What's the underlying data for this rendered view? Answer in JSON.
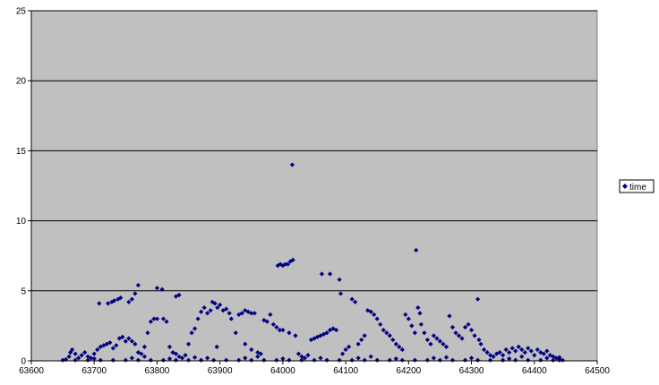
{
  "chart_data": {
    "type": "scatter",
    "title": "",
    "xlabel": "",
    "ylabel": "",
    "xlim": [
      63600,
      64500
    ],
    "ylim": [
      0,
      25
    ],
    "x_ticks": [
      63600,
      63700,
      63800,
      63900,
      64000,
      64100,
      64200,
      64300,
      64400,
      64500
    ],
    "y_ticks": [
      0,
      5,
      10,
      15,
      20,
      25
    ],
    "grid": "horizontal major gridlines",
    "legend_position": "right",
    "plot_background": "#c0c0c0",
    "marker_color": "#000080",
    "series": [
      {
        "name": "time",
        "marker": "diamond",
        "points": [
          [
            63650,
            0.05
          ],
          [
            63655,
            0.1
          ],
          [
            63660,
            0.3
          ],
          [
            63662,
            0.6
          ],
          [
            63665,
            0.8
          ],
          [
            63670,
            0.5
          ],
          [
            63675,
            0.2
          ],
          [
            63680,
            0.4
          ],
          [
            63685,
            0.6
          ],
          [
            63690,
            0.3
          ],
          [
            63695,
            0.2
          ],
          [
            63700,
            0.5
          ],
          [
            63705,
            0.8
          ],
          [
            63710,
            1.0
          ],
          [
            63715,
            1.1
          ],
          [
            63720,
            1.2
          ],
          [
            63725,
            1.3
          ],
          [
            63730,
            0.9
          ],
          [
            63735,
            1.1
          ],
          [
            63740,
            1.6
          ],
          [
            63745,
            1.7
          ],
          [
            63750,
            1.4
          ],
          [
            63755,
            1.6
          ],
          [
            63760,
            1.4
          ],
          [
            63765,
            1.2
          ],
          [
            63770,
            0.6
          ],
          [
            63775,
            0.5
          ],
          [
            63780,
            1.0
          ],
          [
            63785,
            2.0
          ],
          [
            63790,
            2.8
          ],
          [
            63795,
            3.0
          ],
          [
            63800,
            3.0
          ],
          [
            63810,
            3.0
          ],
          [
            63815,
            2.8
          ],
          [
            63820,
            1.0
          ],
          [
            63825,
            0.6
          ],
          [
            63830,
            0.5
          ],
          [
            63835,
            0.3
          ],
          [
            63840,
            0.2
          ],
          [
            63845,
            0.4
          ],
          [
            63708,
            4.1
          ],
          [
            63722,
            4.1
          ],
          [
            63728,
            4.2
          ],
          [
            63732,
            4.3
          ],
          [
            63738,
            4.4
          ],
          [
            63742,
            4.5
          ],
          [
            63755,
            4.2
          ],
          [
            63760,
            4.4
          ],
          [
            63765,
            4.8
          ],
          [
            63770,
            5.4
          ],
          [
            63800,
            5.2
          ],
          [
            63808,
            5.1
          ],
          [
            63830,
            4.6
          ],
          [
            63835,
            4.7
          ],
          [
            63850,
            1.2
          ],
          [
            63855,
            2.0
          ],
          [
            63860,
            2.3
          ],
          [
            63865,
            3.0
          ],
          [
            63870,
            3.5
          ],
          [
            63875,
            3.8
          ],
          [
            63880,
            3.4
          ],
          [
            63885,
            3.6
          ],
          [
            63888,
            4.2
          ],
          [
            63892,
            4.1
          ],
          [
            63896,
            3.8
          ],
          [
            63900,
            4.0
          ],
          [
            63905,
            3.6
          ],
          [
            63910,
            3.7
          ],
          [
            63915,
            3.4
          ],
          [
            63918,
            3.0
          ],
          [
            63925,
            2.0
          ],
          [
            63930,
            3.3
          ],
          [
            63935,
            3.4
          ],
          [
            63940,
            3.6
          ],
          [
            63945,
            3.5
          ],
          [
            63950,
            3.4
          ],
          [
            63955,
            3.4
          ],
          [
            63895,
            1.0
          ],
          [
            63940,
            1.2
          ],
          [
            63950,
            0.8
          ],
          [
            63960,
            0.6
          ],
          [
            63965,
            0.5
          ],
          [
            63970,
            2.9
          ],
          [
            63975,
            2.8
          ],
          [
            63980,
            3.3
          ],
          [
            63985,
            2.6
          ],
          [
            63990,
            2.4
          ],
          [
            63995,
            2.2
          ],
          [
            64000,
            2.2
          ],
          [
            64010,
            2.0
          ],
          [
            63992,
            6.8
          ],
          [
            63996,
            6.9
          ],
          [
            64000,
            6.8
          ],
          [
            64004,
            6.9
          ],
          [
            64008,
            6.9
          ],
          [
            64012,
            7.1
          ],
          [
            64016,
            7.2
          ],
          [
            64015,
            14.0
          ],
          [
            64020,
            1.8
          ],
          [
            64025,
            0.5
          ],
          [
            64030,
            0.3
          ],
          [
            64035,
            0.2
          ],
          [
            64040,
            0.4
          ],
          [
            64045,
            1.5
          ],
          [
            64050,
            1.6
          ],
          [
            64055,
            1.7
          ],
          [
            64060,
            1.8
          ],
          [
            64065,
            1.9
          ],
          [
            64070,
            2.0
          ],
          [
            64075,
            2.2
          ],
          [
            64080,
            2.3
          ],
          [
            64085,
            2.2
          ],
          [
            64062,
            6.2
          ],
          [
            64075,
            6.2
          ],
          [
            64090,
            5.8
          ],
          [
            64092,
            4.8
          ],
          [
            64095,
            0.5
          ],
          [
            64100,
            0.8
          ],
          [
            64105,
            1.0
          ],
          [
            64110,
            4.4
          ],
          [
            64115,
            4.2
          ],
          [
            64120,
            1.2
          ],
          [
            64125,
            1.5
          ],
          [
            64130,
            1.8
          ],
          [
            64135,
            3.6
          ],
          [
            64140,
            3.5
          ],
          [
            64145,
            3.3
          ],
          [
            64150,
            3.0
          ],
          [
            64155,
            2.6
          ],
          [
            64160,
            2.2
          ],
          [
            64165,
            2.0
          ],
          [
            64170,
            1.8
          ],
          [
            64175,
            1.5
          ],
          [
            64180,
            1.2
          ],
          [
            64185,
            1.0
          ],
          [
            64190,
            0.8
          ],
          [
            64195,
            3.3
          ],
          [
            64200,
            3.0
          ],
          [
            64205,
            2.5
          ],
          [
            64210,
            2.0
          ],
          [
            64212,
            7.9
          ],
          [
            64215,
            3.8
          ],
          [
            64218,
            3.4
          ],
          [
            64220,
            2.6
          ],
          [
            64225,
            2.0
          ],
          [
            64230,
            1.5
          ],
          [
            64235,
            1.2
          ],
          [
            64240,
            1.8
          ],
          [
            64245,
            1.6
          ],
          [
            64250,
            1.4
          ],
          [
            64255,
            1.2
          ],
          [
            64260,
            1.0
          ],
          [
            64265,
            3.2
          ],
          [
            64270,
            2.4
          ],
          [
            64275,
            2.0
          ],
          [
            64280,
            1.8
          ],
          [
            64285,
            1.6
          ],
          [
            64290,
            2.4
          ],
          [
            64295,
            2.6
          ],
          [
            64300,
            2.2
          ],
          [
            64305,
            1.8
          ],
          [
            64310,
            4.4
          ],
          [
            64312,
            1.5
          ],
          [
            64315,
            1.2
          ],
          [
            64320,
            0.8
          ],
          [
            64325,
            0.6
          ],
          [
            64330,
            0.4
          ],
          [
            64335,
            0.3
          ],
          [
            64340,
            0.5
          ],
          [
            64345,
            0.6
          ],
          [
            64350,
            0.4
          ],
          [
            64355,
            0.8
          ],
          [
            64360,
            0.6
          ],
          [
            64365,
            0.9
          ],
          [
            64370,
            0.7
          ],
          [
            64375,
            1.0
          ],
          [
            64380,
            0.8
          ],
          [
            64385,
            0.6
          ],
          [
            64390,
            0.9
          ],
          [
            64395,
            0.7
          ],
          [
            64400,
            0.4
          ],
          [
            64405,
            0.8
          ],
          [
            64410,
            0.6
          ],
          [
            64415,
            0.5
          ],
          [
            64420,
            0.7
          ],
          [
            64425,
            0.4
          ],
          [
            64430,
            0.3
          ],
          [
            64435,
            0.2
          ],
          [
            64440,
            0.1
          ],
          [
            64445,
            0.05
          ],
          [
            63670,
            0.05
          ],
          [
            63690,
            0.05
          ],
          [
            63710,
            0.05
          ],
          [
            63730,
            0.05
          ],
          [
            63750,
            0.05
          ],
          [
            63770,
            0.05
          ],
          [
            63790,
            0.05
          ],
          [
            63810,
            0.05
          ],
          [
            63830,
            0.05
          ],
          [
            63850,
            0.05
          ],
          [
            63870,
            0.05
          ],
          [
            63890,
            0.05
          ],
          [
            63910,
            0.05
          ],
          [
            63930,
            0.05
          ],
          [
            63950,
            0.05
          ],
          [
            63970,
            0.05
          ],
          [
            63990,
            0.05
          ],
          [
            64010,
            0.05
          ],
          [
            64030,
            0.05
          ],
          [
            64050,
            0.05
          ],
          [
            64070,
            0.05
          ],
          [
            64090,
            0.05
          ],
          [
            64110,
            0.05
          ],
          [
            64130,
            0.05
          ],
          [
            64150,
            0.05
          ],
          [
            64170,
            0.05
          ],
          [
            64190,
            0.05
          ],
          [
            64210,
            0.05
          ],
          [
            64230,
            0.05
          ],
          [
            64250,
            0.05
          ],
          [
            64270,
            0.05
          ],
          [
            64290,
            0.05
          ],
          [
            64310,
            0.05
          ],
          [
            64330,
            0.05
          ],
          [
            64350,
            0.05
          ],
          [
            64370,
            0.05
          ],
          [
            64390,
            0.05
          ],
          [
            64410,
            0.05
          ],
          [
            64430,
            0.05
          ],
          [
            64440,
            0.05
          ],
          [
            63700,
            0.15
          ],
          [
            63760,
            0.2
          ],
          [
            63820,
            0.15
          ],
          [
            63880,
            0.2
          ],
          [
            63940,
            0.2
          ],
          [
            64000,
            0.15
          ],
          [
            64060,
            0.2
          ],
          [
            64120,
            0.2
          ],
          [
            64180,
            0.15
          ],
          [
            64240,
            0.2
          ],
          [
            64300,
            0.2
          ],
          [
            64360,
            0.15
          ],
          [
            64420,
            0.2
          ],
          [
            63780,
            0.3
          ],
          [
            63860,
            0.25
          ],
          [
            63960,
            0.3
          ],
          [
            64140,
            0.3
          ],
          [
            64260,
            0.25
          ],
          [
            64380,
            0.3
          ],
          [
            64440,
            0.25
          ]
        ]
      }
    ]
  }
}
